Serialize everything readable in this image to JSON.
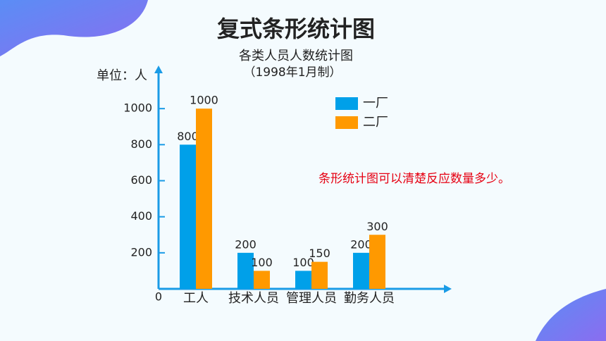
{
  "slide_title": "复式条形统计图",
  "chart_data": {
    "type": "bar",
    "title": "各类人员人数统计图",
    "subtitle": "（1998年1月制）",
    "y_label": "单位：人",
    "categories": [
      "工人",
      "技术人员",
      "管理人员",
      "勤务人员"
    ],
    "series": [
      {
        "name": "一厂",
        "color": "#00a0e9",
        "values": [
          800,
          200,
          100,
          200
        ]
      },
      {
        "name": "二厂",
        "color": "#ff9900",
        "values": [
          1000,
          100,
          150,
          300
        ]
      }
    ],
    "ylim": [
      0,
      1200
    ],
    "yticks": [
      0,
      200,
      400,
      600,
      800,
      1000
    ],
    "value_labels_shown": true,
    "legend": "top-right",
    "annotation": "条形统计图可以清楚反应数量多少。"
  }
}
